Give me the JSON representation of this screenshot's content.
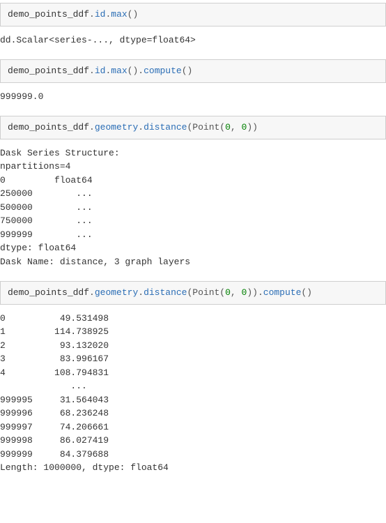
{
  "colors": {
    "code_bg": "#f7f7f7",
    "code_border": "#cfcfcf",
    "output_bg": "#ffffff",
    "text": "#333333",
    "ident": "#333333",
    "attr": "#2a6db5",
    "punct": "#555555",
    "num": "#008000"
  },
  "typography": {
    "font_family": "Consolas, Monaco, 'Courier New', monospace",
    "font_size_pt": 10,
    "line_height": 1.5
  },
  "cells": {
    "c1": {
      "tokens": {
        "t0": "demo_points_ddf",
        "t1": ".",
        "t2": "id",
        "t3": ".",
        "t4": "max",
        "t5": "()"
      }
    },
    "o1": "dd.Scalar<series-..., dtype=float64>",
    "c2": {
      "tokens": {
        "t0": "demo_points_ddf",
        "t1": ".",
        "t2": "id",
        "t3": ".",
        "t4": "max",
        "t5": "()",
        "t6": ".",
        "t7": "compute",
        "t8": "()"
      }
    },
    "o2": "999999.0",
    "c3": {
      "tokens": {
        "t0": "demo_points_ddf",
        "t1": ".",
        "t2": "geometry",
        "t3": ".",
        "t4": "distance",
        "t5": "(Point(",
        "t6": "0",
        "t7": ", ",
        "t8": "0",
        "t9": "))"
      }
    },
    "o3": "Dask Series Structure:\nnpartitions=4\n0         float64\n250000        ...\n500000        ...\n750000        ...\n999999        ...\ndtype: float64\nDask Name: distance, 3 graph layers",
    "c4": {
      "tokens": {
        "t0": "demo_points_ddf",
        "t1": ".",
        "t2": "geometry",
        "t3": ".",
        "t4": "distance",
        "t5": "(Point(",
        "t6": "0",
        "t7": ", ",
        "t8": "0",
        "t9": "))",
        "t10": ".",
        "t11": "compute",
        "t12": "()"
      }
    },
    "o4": "0          49.531498\n1         114.738925\n2          93.132020\n3          83.996167\n4         108.794831\n             ...\n999995     31.564043\n999996     68.236248\n999997     74.206661\n999998     86.027419\n999999     84.379688\nLength: 1000000, dtype: float64"
  }
}
